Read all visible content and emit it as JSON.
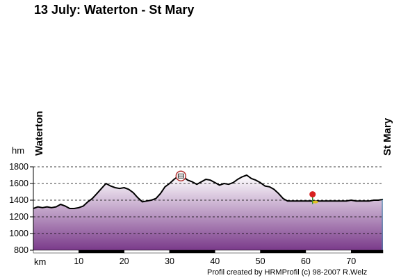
{
  "header": {
    "title": "13 July: Waterton - St Mary"
  },
  "route": {
    "start": "Waterton",
    "end": "St Mary"
  },
  "footer": {
    "credit": "Profil created by HRMProfil (c) 98-2007 R.Welz"
  },
  "chart_data": {
    "type": "area",
    "title": "13 July: Waterton - St Mary",
    "xlabel": "km",
    "ylabel": "hm",
    "xlim": [
      0,
      77
    ],
    "ylim": [
      800,
      1800
    ],
    "x_ticks": [
      10,
      20,
      30,
      40,
      50,
      60,
      70
    ],
    "y_ticks": [
      800,
      1000,
      1200,
      1400,
      1600,
      1800
    ],
    "grid": "dashed horizontal",
    "fill_gradient": [
      "#ffffff",
      "#7a3a8a"
    ],
    "line_color": "#000000",
    "series": [
      {
        "x": [
          0,
          1,
          2,
          3,
          4,
          5,
          6,
          7,
          8,
          9,
          10,
          11,
          12,
          13,
          14,
          15,
          16,
          17,
          18,
          19,
          20,
          21,
          22,
          23,
          24,
          25,
          26,
          27,
          28,
          29,
          30,
          31,
          32,
          33,
          34,
          35,
          36,
          37,
          38,
          39,
          40,
          41,
          42,
          43,
          44,
          45,
          46,
          47,
          48,
          49,
          50,
          51,
          52,
          53,
          54,
          55,
          56,
          57,
          58,
          59,
          60,
          61,
          62,
          63,
          64,
          65,
          66,
          67,
          68,
          69,
          70,
          71,
          72,
          73,
          74,
          75,
          76,
          77
        ],
        "values": [
          1300,
          1320,
          1310,
          1320,
          1310,
          1320,
          1350,
          1330,
          1300,
          1300,
          1310,
          1330,
          1380,
          1420,
          1480,
          1540,
          1600,
          1570,
          1550,
          1540,
          1550,
          1530,
          1490,
          1430,
          1380,
          1390,
          1400,
          1420,
          1480,
          1560,
          1600,
          1650,
          1690,
          1680,
          1640,
          1620,
          1590,
          1620,
          1650,
          1640,
          1610,
          1580,
          1600,
          1590,
          1610,
          1650,
          1680,
          1700,
          1660,
          1640,
          1610,
          1570,
          1560,
          1530,
          1480,
          1420,
          1390,
          1390,
          1390,
          1390,
          1390,
          1390,
          1390,
          1390,
          1390,
          1390,
          1390,
          1390,
          1390,
          1390,
          1400,
          1390,
          1390,
          1390,
          1390,
          1400,
          1400,
          1410
        ]
      }
    ],
    "markers": [
      {
        "name": "restaurant-icon",
        "x": 32.5,
        "y": 1690
      },
      {
        "name": "flower-icon",
        "x": 61.5,
        "y": 1420
      }
    ]
  }
}
